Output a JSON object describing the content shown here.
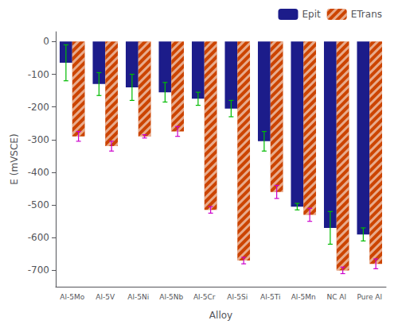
{
  "chart_data": {
    "type": "bar",
    "xlabel": "Alloy",
    "ylabel": "E (mVSCE)",
    "categories": [
      "Al-5Mo",
      "Al-5V",
      "Al-5Ni",
      "Al-5Nb",
      "Al-5Cr",
      "Al-5Si",
      "Al-5Ti",
      "Al-5Mn",
      "NC Al",
      "Pure Al"
    ],
    "series": [
      {
        "name": "Epit",
        "color": "#1c1c8a",
        "values": [
          -65,
          -130,
          -140,
          -155,
          -175,
          -205,
          -305,
          -505,
          -570,
          -590
        ],
        "errors": [
          55,
          35,
          40,
          30,
          20,
          25,
          30,
          10,
          50,
          20
        ]
      },
      {
        "name": "ETrans",
        "color": "#cc4400",
        "values": [
          -290,
          -320,
          -290,
          -275,
          -515,
          -670,
          -460,
          -530,
          -700,
          -680
        ],
        "errors": [
          15,
          15,
          5,
          15,
          10,
          10,
          20,
          20,
          10,
          15
        ]
      }
    ],
    "ylim": [
      -750,
      30
    ],
    "yticks": [
      0,
      -100,
      -200,
      -300,
      -400,
      -500,
      -600,
      -700
    ],
    "legend": "upper right",
    "grid": false
  }
}
